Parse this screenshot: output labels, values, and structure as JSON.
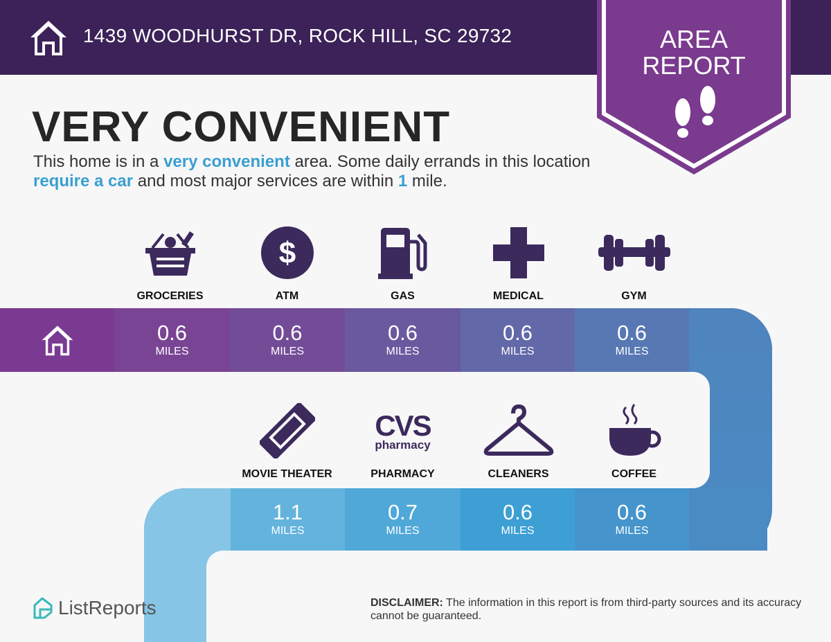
{
  "header": {
    "address": "1439 WOODHURST DR, ROCK HILL, SC 29732",
    "icon": "house-icon"
  },
  "badge": {
    "line1": "AREA",
    "line2": "REPORT",
    "icon": "footprints-icon",
    "color": "#7a3a8e"
  },
  "headline": "VERY CONVENIENT",
  "description": {
    "p1": "This home is in a ",
    "h1": "very convenient",
    "p2": " area. Some daily errands in this location ",
    "h2": "require a car",
    "p3": " and most major services are within ",
    "h3": "1",
    "p4": " mile."
  },
  "top_row": [
    {
      "label": "GROCERIES",
      "icon": "grocery-basket-icon",
      "distance": "0.6",
      "unit": "MILES"
    },
    {
      "label": "ATM",
      "icon": "dollar-icon",
      "distance": "0.6",
      "unit": "MILES"
    },
    {
      "label": "GAS",
      "icon": "gas-pump-icon",
      "distance": "0.6",
      "unit": "MILES"
    },
    {
      "label": "MEDICAL",
      "icon": "medical-cross-icon",
      "distance": "0.6",
      "unit": "MILES"
    },
    {
      "label": "GYM",
      "icon": "dumbbell-icon",
      "distance": "0.6",
      "unit": "MILES"
    }
  ],
  "bottom_row": [
    {
      "label": "MOVIE THEATER",
      "icon": "ticket-icon",
      "distance": "1.1",
      "unit": "MILES"
    },
    {
      "label": "PHARMACY",
      "icon": "cvs-pharmacy-logo",
      "logo_text": "CVS",
      "logo_sub": "pharmacy",
      "distance": "0.7",
      "unit": "MILES"
    },
    {
      "label": "CLEANERS",
      "icon": "hanger-icon",
      "distance": "0.6",
      "unit": "MILES"
    },
    {
      "label": "COFFEE",
      "icon": "coffee-cup-icon",
      "distance": "0.6",
      "unit": "MILES"
    }
  ],
  "footer": {
    "brand": "ListReports",
    "disclaimer_label": "DISCLAIMER:",
    "disclaimer": " The information in this report is from third-party sources and its accuracy cannot be guaranteed."
  }
}
